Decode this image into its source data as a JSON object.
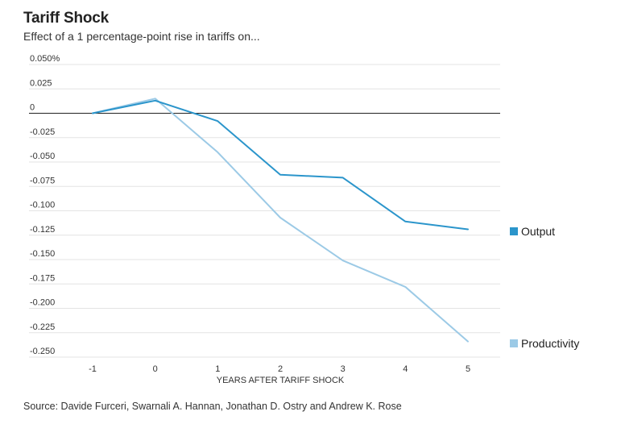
{
  "header": {
    "title": "Tariff Shock",
    "subtitle": "Effect of a 1 percentage-point rise in tariffs on..."
  },
  "footer": {
    "source": "Source: Davide Furceri, Swarnali A. Hannan, Jonathan D. Ostry and Andrew K. Rose"
  },
  "colors": {
    "output": "#2b95cb",
    "productivity": "#9ccae6",
    "grid": "#e3e3e3",
    "zero": "#222222"
  },
  "chart_data": {
    "type": "line",
    "title": "Tariff Shock",
    "subtitle": "Effect of a 1 percentage-point rise in tariffs on...",
    "xlabel": "YEARS AFTER TARIFF SHOCK",
    "ylabel": "",
    "x": [
      -1,
      0,
      1,
      2,
      3,
      4,
      5
    ],
    "x_tick_labels": [
      "-1",
      "0",
      "1",
      "2",
      "3",
      "4",
      "5"
    ],
    "y_ticks": [
      0.05,
      0.025,
      0,
      -0.025,
      -0.05,
      -0.075,
      -0.1,
      -0.125,
      -0.15,
      -0.175,
      -0.2,
      -0.225,
      -0.25
    ],
    "y_tick_labels": [
      "0.050%",
      "0.025",
      "0",
      "-0.025",
      "-0.050",
      "-0.075",
      "-0.100",
      "-0.125",
      "-0.150",
      "-0.175",
      "-0.200",
      "-0.225",
      "-0.250"
    ],
    "ylim": [
      -0.25,
      0.05
    ],
    "xlim": [
      -1,
      5
    ],
    "grid": true,
    "legend_placement": "right, at line ends",
    "series": [
      {
        "name": "Output",
        "color": "#2b95cb",
        "values": [
          0,
          0.013,
          -0.008,
          -0.063,
          -0.066,
          -0.111,
          -0.119
        ]
      },
      {
        "name": "Productivity",
        "color": "#9ccae6",
        "values": [
          0,
          0.015,
          -0.04,
          -0.107,
          -0.151,
          -0.178,
          -0.234
        ]
      }
    ]
  }
}
